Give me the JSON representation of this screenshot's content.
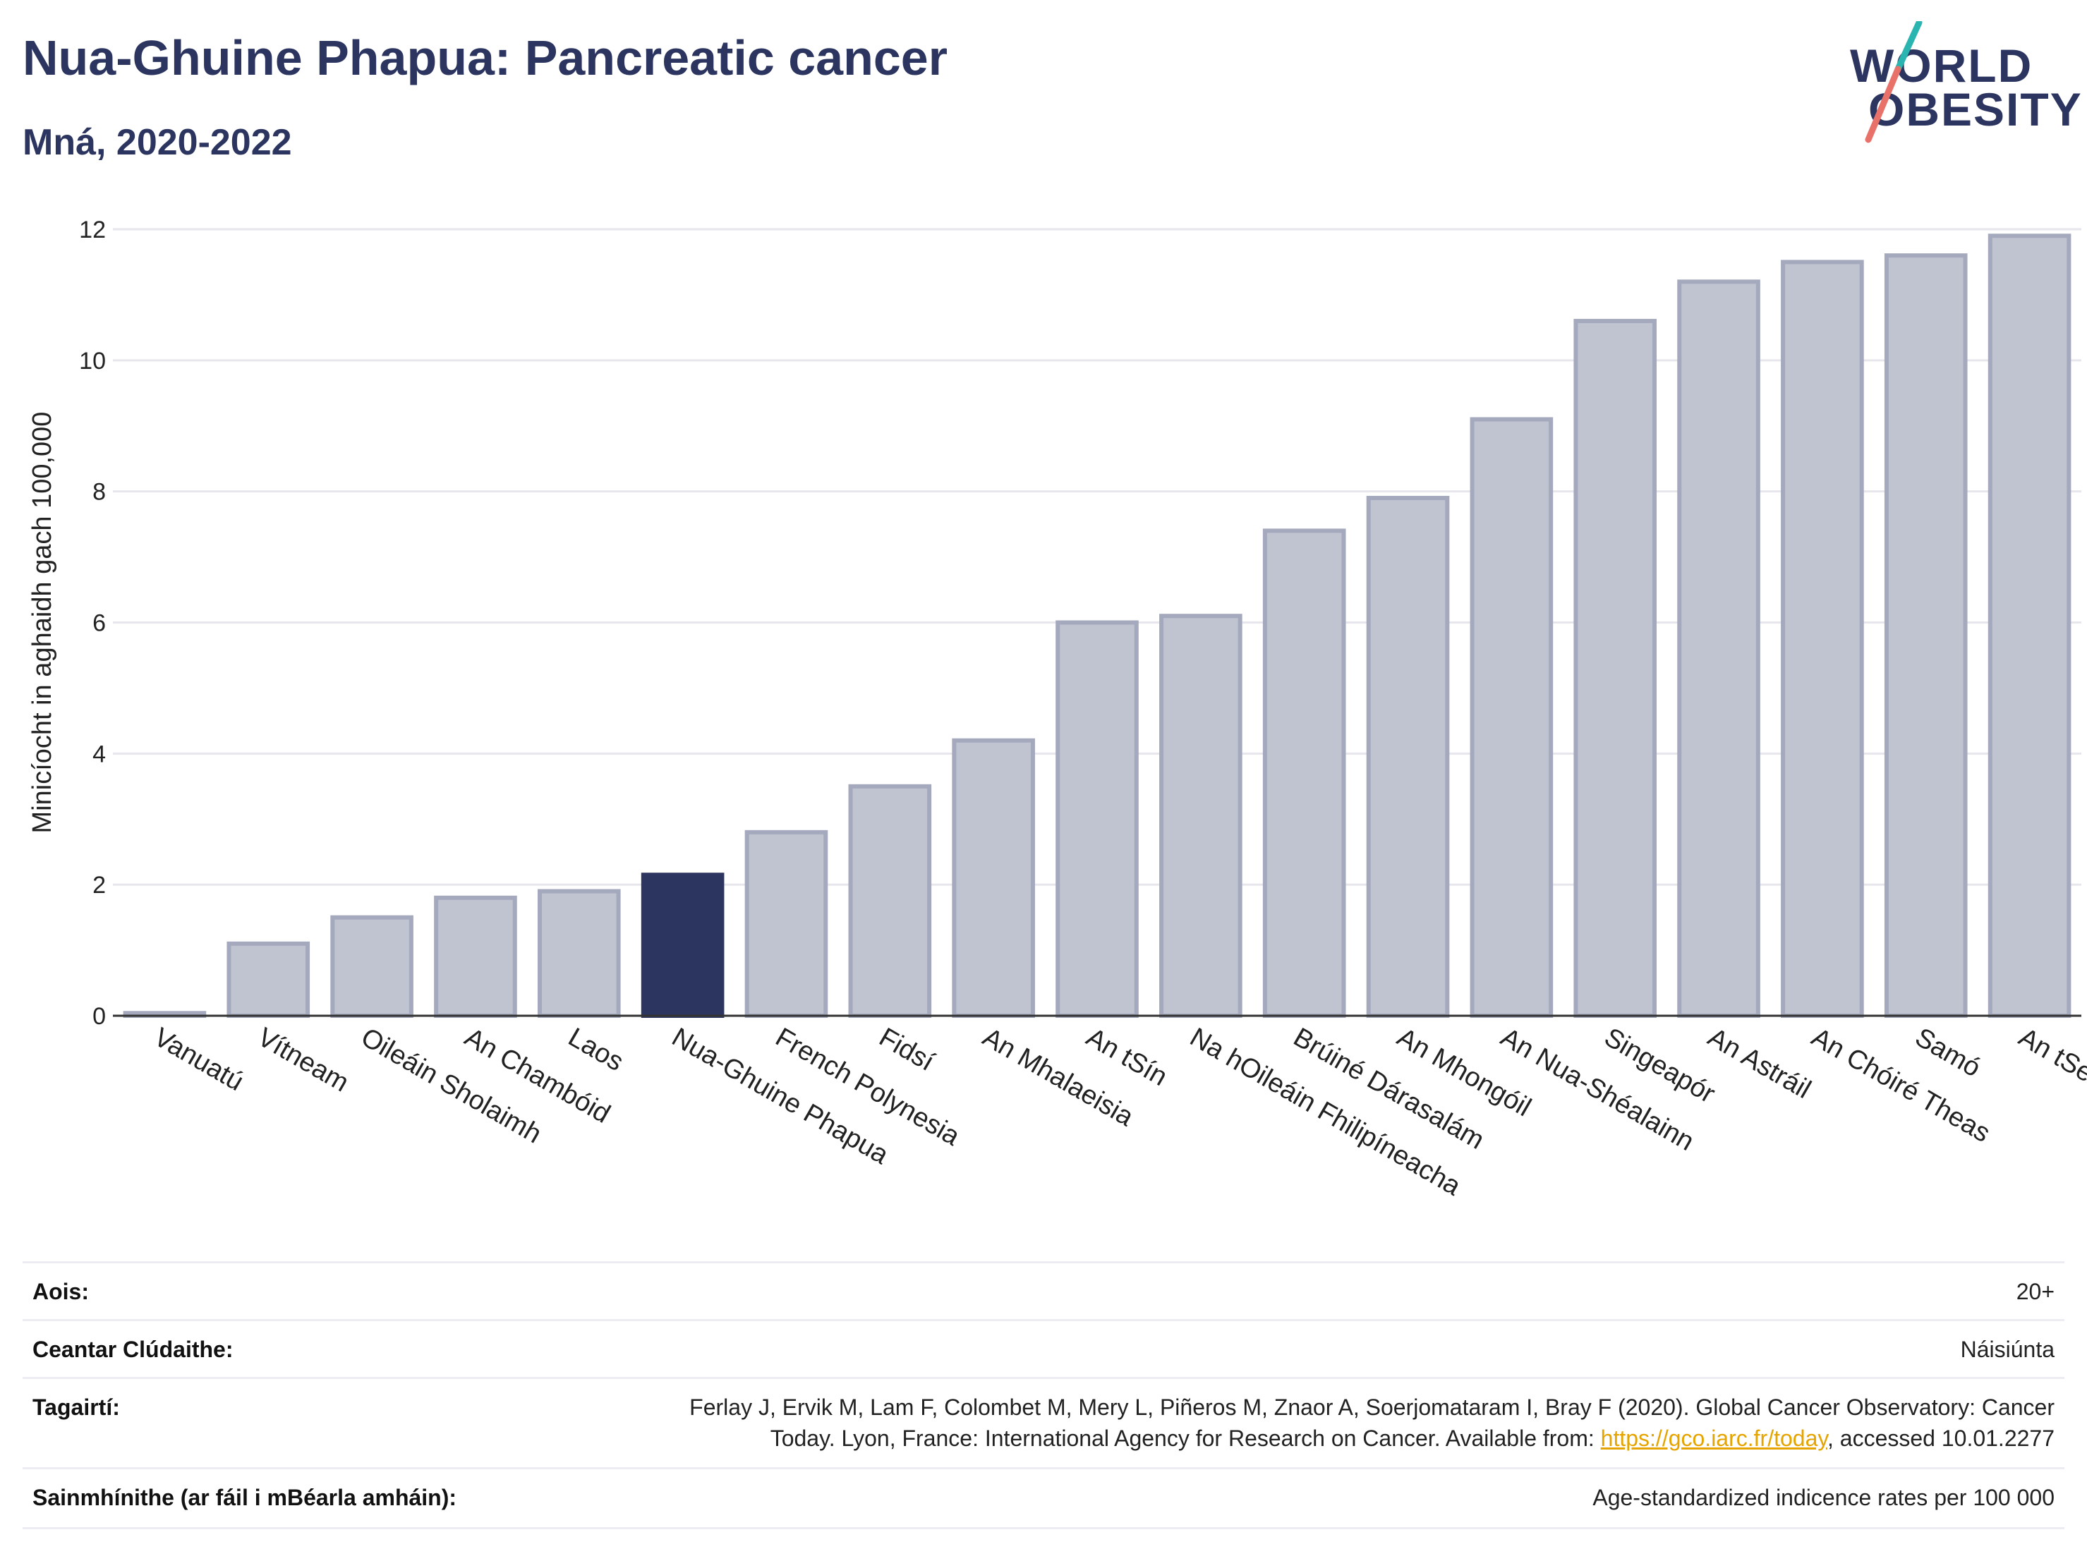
{
  "header": {
    "title": "Nua-Ghuine Phapua: Pancreatic cancer",
    "subtitle": "Mná, 2020-2022"
  },
  "logo": {
    "line1": "WORLD",
    "line2": "OBESITY",
    "colors": {
      "teal": "#2bb5b0",
      "coral": "#e8726a",
      "navy": "#2b3560"
    }
  },
  "chart_data": {
    "type": "bar",
    "ylabel": "Minicíocht in aghaidh gach 100,000",
    "ylim": [
      0,
      12
    ],
    "yticks": [
      0,
      2,
      4,
      6,
      8,
      10,
      12
    ],
    "grid": true,
    "highlight": "Nua-Ghuine Phapua",
    "colors": {
      "bar": "#c0c3d0",
      "bar_border": "#a4a9bd",
      "highlight": "#2b3560"
    },
    "categories": [
      "Vanuatú",
      "Vítneam",
      "Oileáin Sholaimh",
      "An Chambóid",
      "Laos",
      "Nua-Ghuine Phapua",
      "French Polynesia",
      "Fidsí",
      "An Mhalaeisia",
      "An tSín",
      "Na hOileáin Fhilipíneacha",
      "Brúiné Dárasalám",
      "An Mhongóil",
      "An Nua-Shéalainn",
      "Singeapór",
      "An Astráil",
      "An Chóiré Theas",
      "Samó",
      "An tSeapáin"
    ],
    "values": [
      0.04,
      1.1,
      1.5,
      1.8,
      1.9,
      2.15,
      2.8,
      3.5,
      4.2,
      6.0,
      6.1,
      7.4,
      7.9,
      9.1,
      10.6,
      11.2,
      11.5,
      11.6,
      11.9
    ]
  },
  "info": {
    "rows": [
      {
        "label": "Aois:",
        "value": "20+"
      },
      {
        "label": "Ceantar Clúdaithe:",
        "value": "Náisiúnta"
      },
      {
        "label": "Tagairtí:",
        "value_line1": "Ferlay J, Ervik M, Lam F, Colombet M, Mery L, Piñeros M, Znaor A, Soerjomataram I, Bray F (2020). Global Cancer Observatory: Cancer",
        "value_line2_pre": "Today. Lyon, France: International Agency for Research on Cancer. Available from: ",
        "link": "https://gco.iarc.fr/today",
        "value_line2_post": ", accessed 10.01.2277"
      },
      {
        "label": "Sainmhínithe (ar fáil i mBéarla amháin):",
        "value": "Age-standardized indicence rates per 100 000"
      }
    ]
  }
}
